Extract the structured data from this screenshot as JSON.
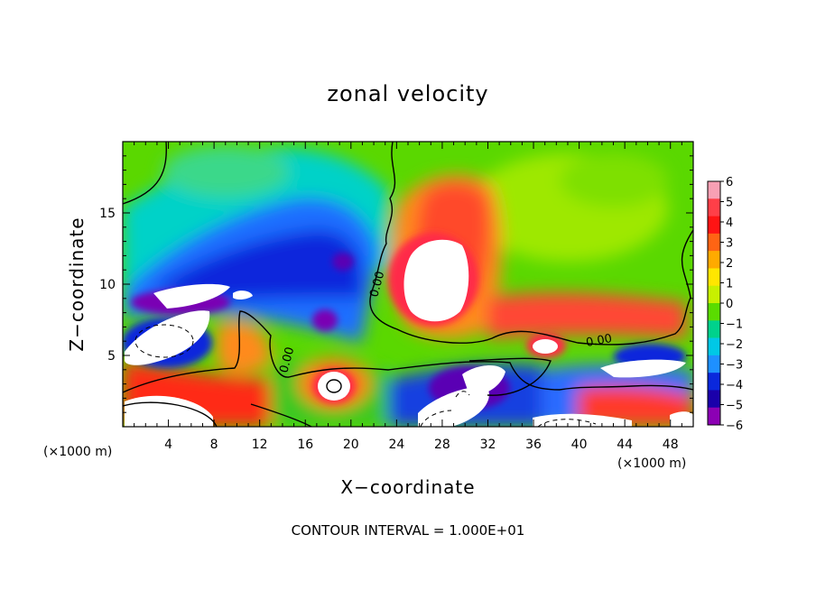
{
  "chart_data": {
    "type": "heatmap",
    "title": "zonal velocity",
    "xlabel": "X−coordinate",
    "ylabel": "Z−coordinate",
    "x_unit_note": "(×1000 m)",
    "xlim": [
      0,
      50
    ],
    "ylim": [
      0,
      20
    ],
    "x_ticks": [
      4,
      8,
      12,
      16,
      20,
      24,
      28,
      32,
      36,
      40,
      44,
      48
    ],
    "y_ticks": [
      5,
      10,
      15
    ],
    "colorbar": {
      "min": -6,
      "max": 6,
      "tick_labels": [
        "6",
        "5",
        "4",
        "3",
        "2",
        "1",
        "0",
        "−1",
        "−2",
        "−3",
        "−4",
        "−5",
        "−6"
      ],
      "colors": [
        "#f8a0b4",
        "#ff3f48",
        "#ff1414",
        "#ff6414",
        "#ffaa00",
        "#ffe600",
        "#c8f000",
        "#5adc00",
        "#00d28c",
        "#00c8e6",
        "#1e90ff",
        "#0a28dc",
        "#1a00aa",
        "#8c00b4"
      ]
    },
    "contour_labels": [
      "0.00",
      "0.00",
      "0.00"
    ],
    "footer": "CONTOUR INTERVAL = 1.000E+01"
  }
}
